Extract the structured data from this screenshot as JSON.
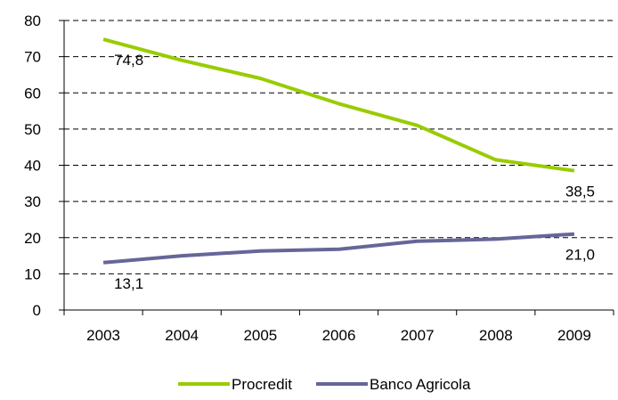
{
  "chart_data": {
    "type": "line",
    "title": "",
    "xlabel": "",
    "ylabel": "",
    "categories": [
      "2003",
      "2004",
      "2005",
      "2006",
      "2007",
      "2008",
      "2009"
    ],
    "ylim": [
      0,
      80
    ],
    "yticks": [
      "0",
      "10",
      "20",
      "30",
      "40",
      "50",
      "60",
      "70",
      "80"
    ],
    "grid": true,
    "legend_position": "bottom",
    "series": [
      {
        "name": "Procredit",
        "color": "#99CC00",
        "values": [
          74.8,
          69,
          64,
          57,
          51,
          41.5,
          38.5
        ],
        "labels": [
          "74,8",
          "",
          "",
          "",
          "",
          "",
          "38,5"
        ]
      },
      {
        "name": "Banco Agricola",
        "color": "#666699",
        "values": [
          13.1,
          15,
          16.3,
          16.8,
          19,
          19.6,
          21.0
        ],
        "labels": [
          "13,1",
          "",
          "",
          "",
          "",
          "",
          "21,0"
        ]
      }
    ]
  }
}
